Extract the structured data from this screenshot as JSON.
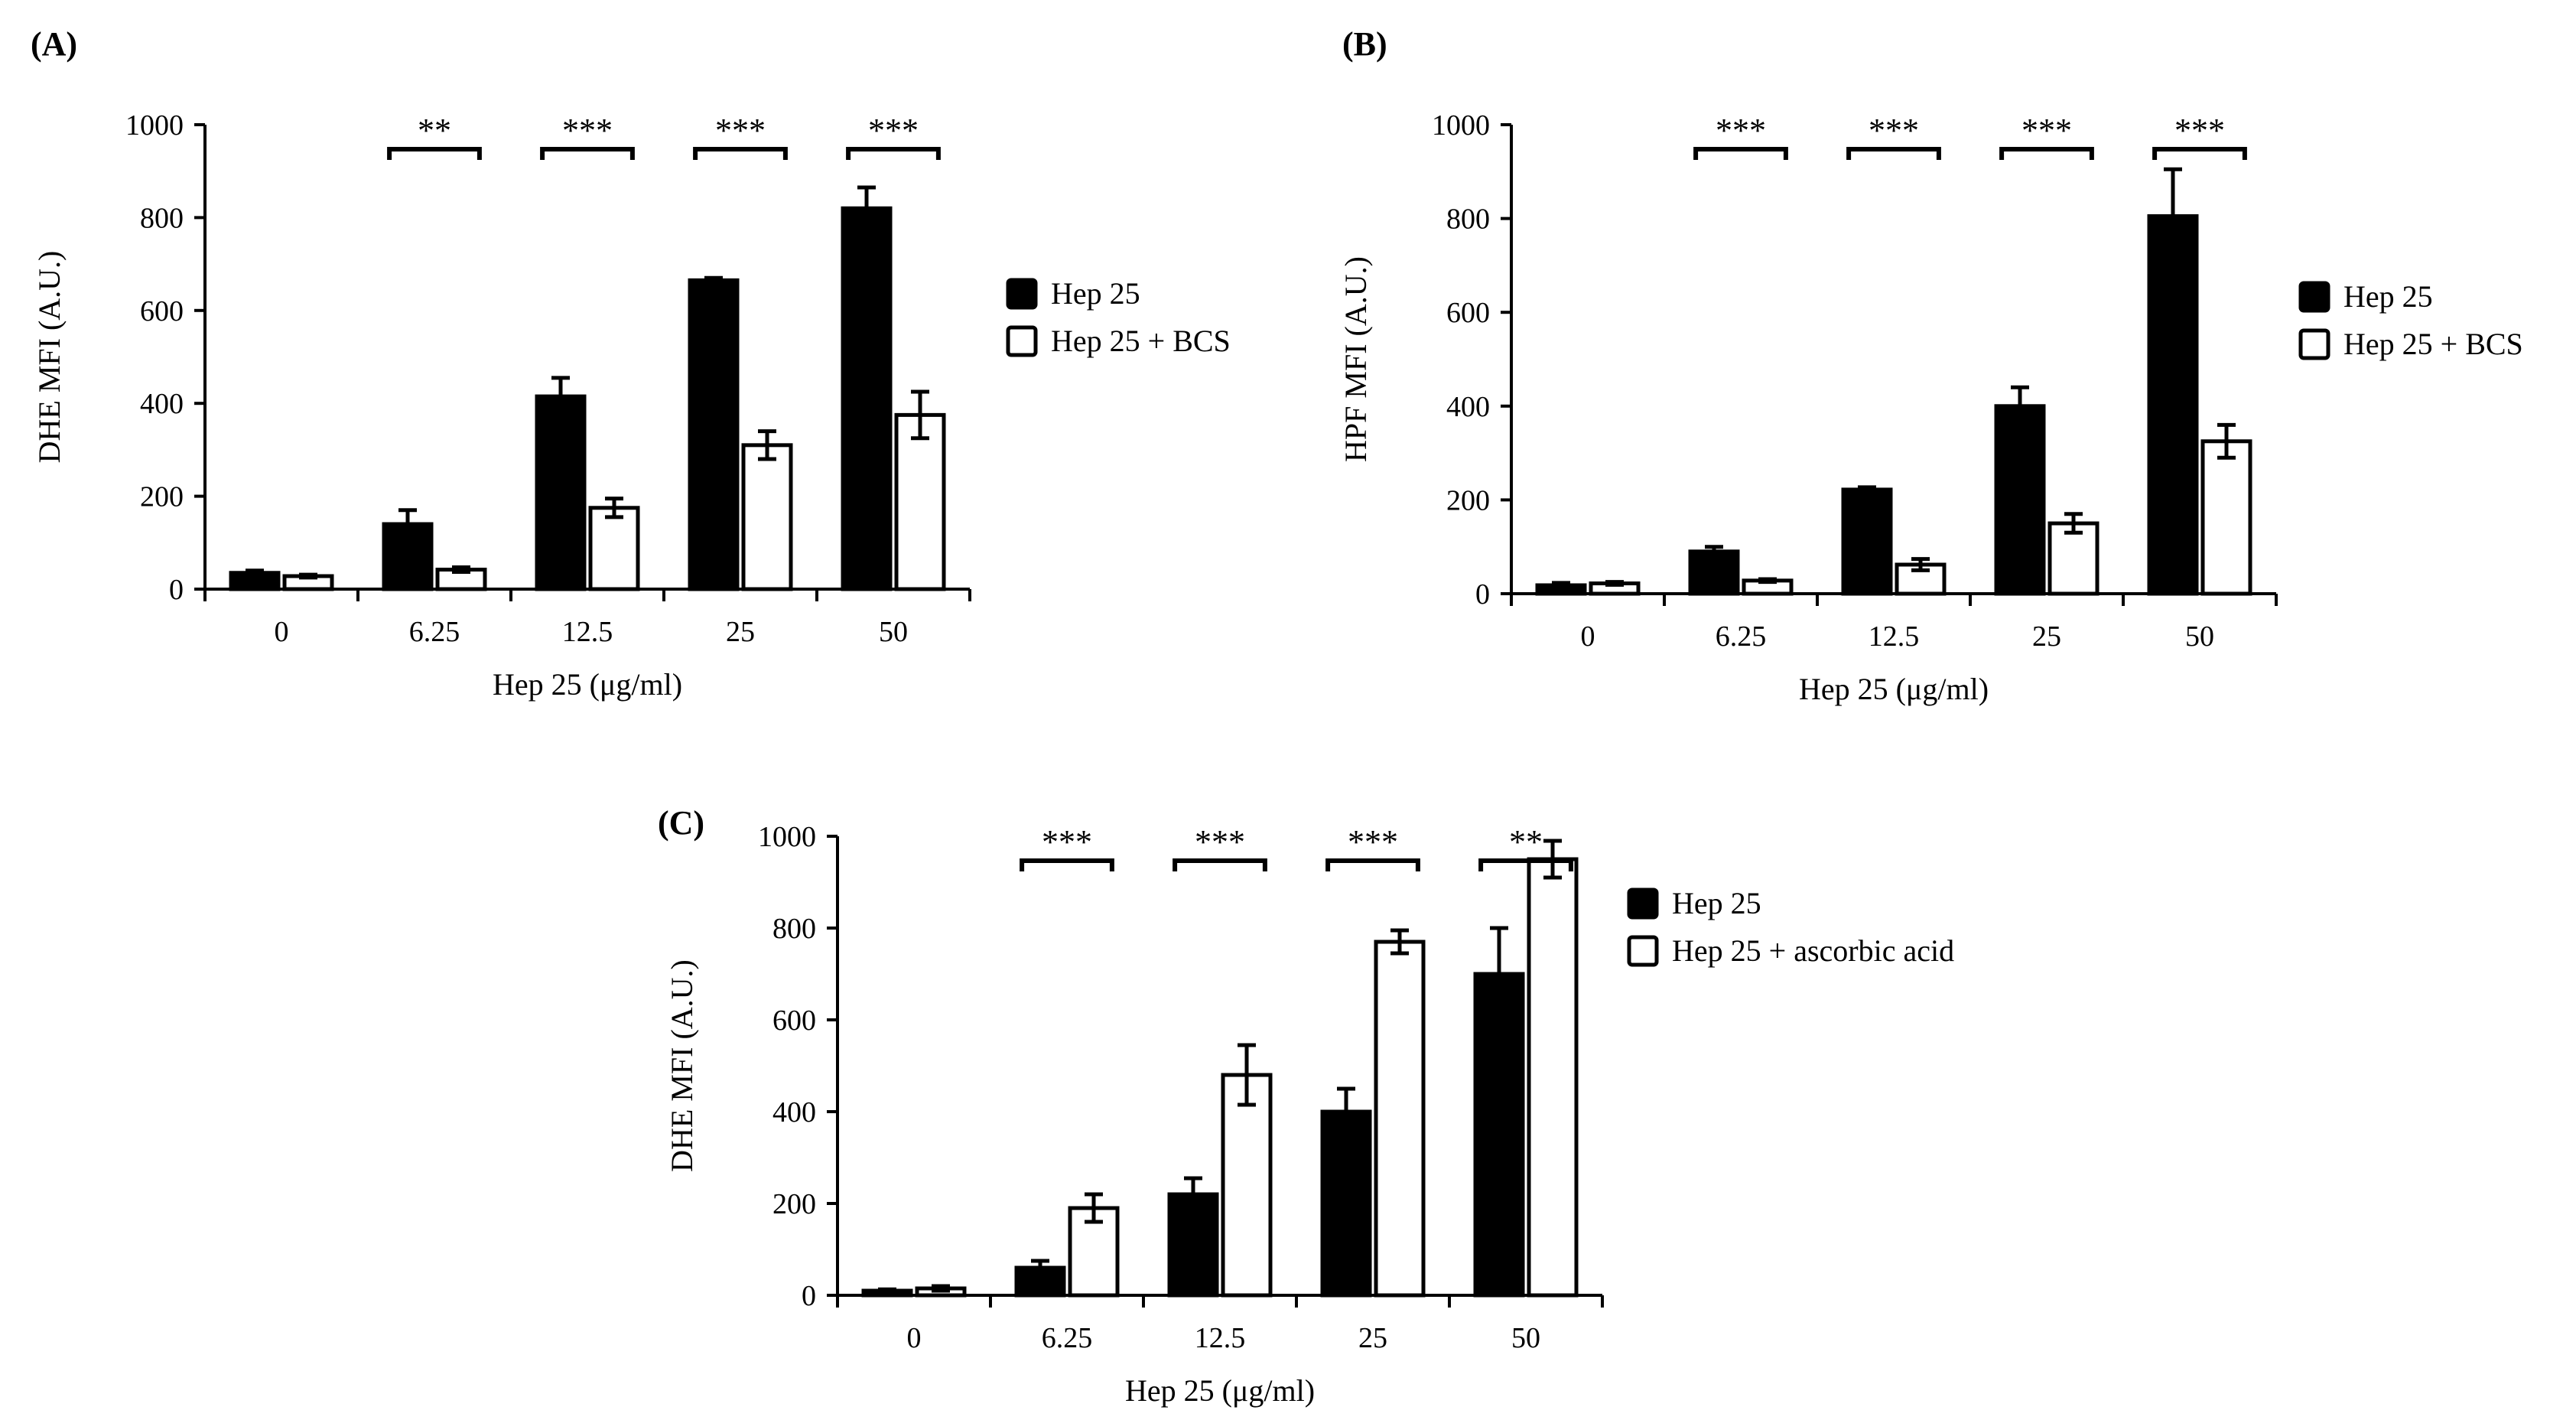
{
  "colors": {
    "series_filled": "#000000",
    "series_open": "#ffffff",
    "axis": "#000000"
  },
  "chart_data": [
    {
      "type": "bar",
      "panel": "(A)",
      "categories": [
        "0",
        "6.25",
        "12.5",
        "25",
        "50"
      ],
      "xlabel": "Hep 25 (μg/ml)",
      "ylabel": "DHE MFI (A.U.)",
      "ylim": [
        0,
        1000
      ],
      "yticks": [
        "0",
        "200",
        "400",
        "600",
        "800",
        "1000"
      ],
      "legend_position": "right",
      "series": [
        {
          "name": "Hep 25",
          "fill": "filled",
          "values": [
            35,
            140,
            415,
            665,
            820
          ],
          "errors": [
            5,
            30,
            40,
            5,
            45
          ]
        },
        {
          "name": "Hep 25 + BCS",
          "fill": "open",
          "values": [
            28,
            42,
            175,
            310,
            375
          ],
          "errors": [
            3,
            5,
            20,
            30,
            50
          ]
        }
      ],
      "significance": [
        "",
        "**",
        "***",
        "***",
        "***"
      ]
    },
    {
      "type": "bar",
      "panel": "(B)",
      "categories": [
        "0",
        "6.25",
        "12.5",
        "25",
        "50"
      ],
      "xlabel": "Hep 25 (μg/ml)",
      "ylabel": "HPF MFI (A.U.)",
      "ylim": [
        0,
        1000
      ],
      "yticks": [
        "0",
        "200",
        "400",
        "600",
        "800",
        "1000"
      ],
      "legend_position": "right",
      "series": [
        {
          "name": "Hep 25",
          "fill": "filled",
          "values": [
            18,
            90,
            222,
            400,
            805
          ],
          "errors": [
            5,
            10,
            5,
            40,
            100
          ]
        },
        {
          "name": "Hep 25 + BCS",
          "fill": "open",
          "values": [
            22,
            28,
            62,
            150,
            325
          ],
          "errors": [
            3,
            3,
            12,
            20,
            35
          ]
        }
      ],
      "significance": [
        "",
        "***",
        "***",
        "***",
        "***"
      ]
    },
    {
      "type": "bar",
      "panel": "(C)",
      "categories": [
        "0",
        "6.25",
        "12.5",
        "25",
        "50"
      ],
      "xlabel": "Hep 25 (μg/ml)",
      "ylabel": "DHE MFI (A.U.)",
      "ylim": [
        0,
        1000
      ],
      "yticks": [
        "0",
        "200",
        "400",
        "600",
        "800",
        "1000"
      ],
      "legend_position": "right",
      "series": [
        {
          "name": "Hep 25",
          "fill": "filled",
          "values": [
            10,
            60,
            220,
            400,
            700
          ],
          "errors": [
            3,
            15,
            35,
            50,
            100
          ]
        },
        {
          "name": "Hep 25 + ascorbic acid",
          "fill": "open",
          "values": [
            15,
            190,
            480,
            770,
            950
          ],
          "errors": [
            5,
            30,
            65,
            25,
            40
          ]
        }
      ],
      "significance": [
        "",
        "***",
        "***",
        "***",
        "**"
      ]
    }
  ]
}
